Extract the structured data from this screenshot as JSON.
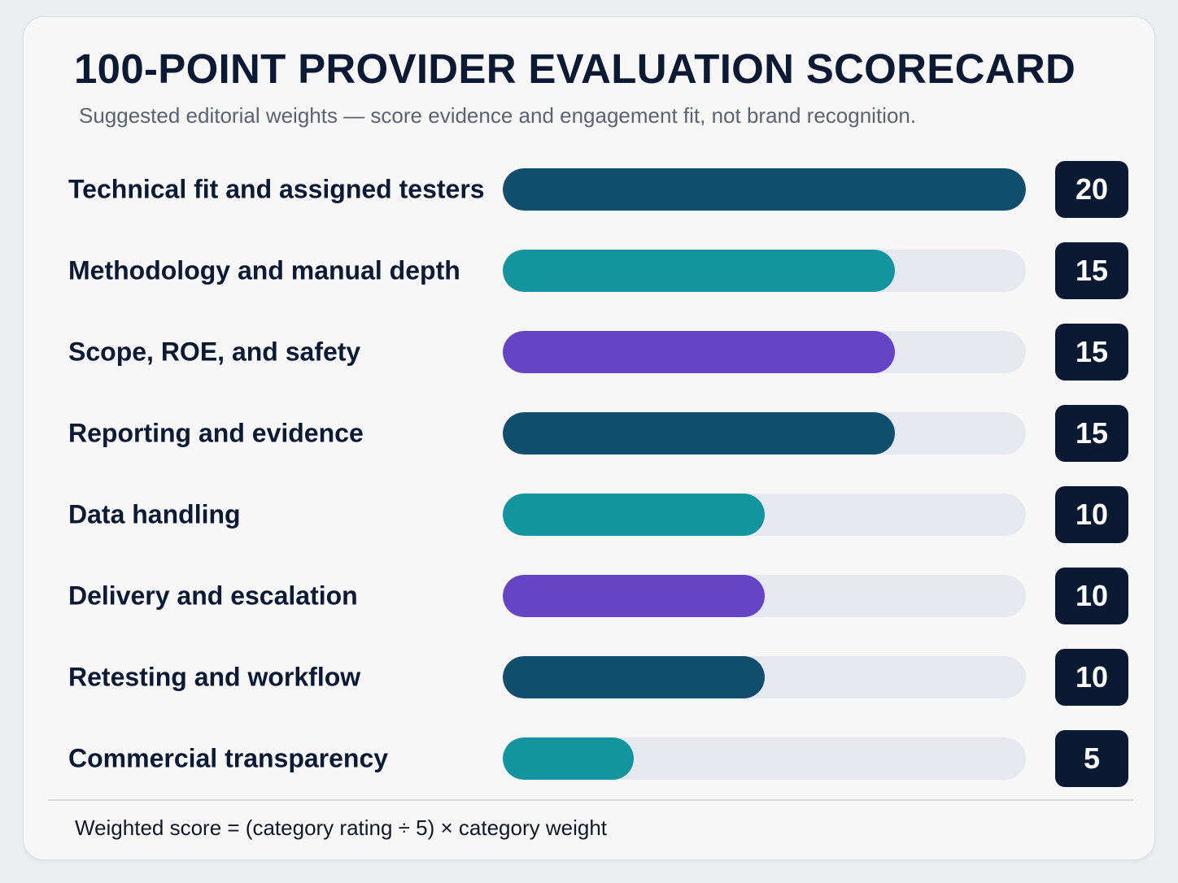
{
  "title": "100-POINT PROVIDER EVALUATION SCORECARD",
  "subtitle": "Suggested editorial weights — score evidence and engagement fit, not brand recognition.",
  "footnote": "Weighted score = (category rating ÷ 5) × category weight",
  "colors": {
    "navy": "#114e6e",
    "teal": "#13949e",
    "purple": "#6544c6",
    "track": "#e5e9ef",
    "badge": "#0b1a33"
  },
  "chart_data": {
    "type": "bar",
    "orientation": "horizontal",
    "title": "100-POINT PROVIDER EVALUATION SCORECARD",
    "xlim": [
      0,
      20
    ],
    "grid": false,
    "categories": [
      "Technical fit and assigned testers",
      "Methodology and manual depth",
      "Scope, ROE, and safety",
      "Reporting and evidence",
      "Data handling",
      "Delivery and escalation",
      "Retesting and workflow",
      "Commercial transparency"
    ],
    "values": [
      20,
      15,
      15,
      15,
      10,
      10,
      10,
      5
    ],
    "bar_colors": [
      "#114e6e",
      "#13949e",
      "#6544c6",
      "#114e6e",
      "#13949e",
      "#6544c6",
      "#114e6e",
      "#13949e"
    ],
    "value_labels": [
      "20",
      "15",
      "15",
      "15",
      "10",
      "10",
      "10",
      "5"
    ]
  }
}
